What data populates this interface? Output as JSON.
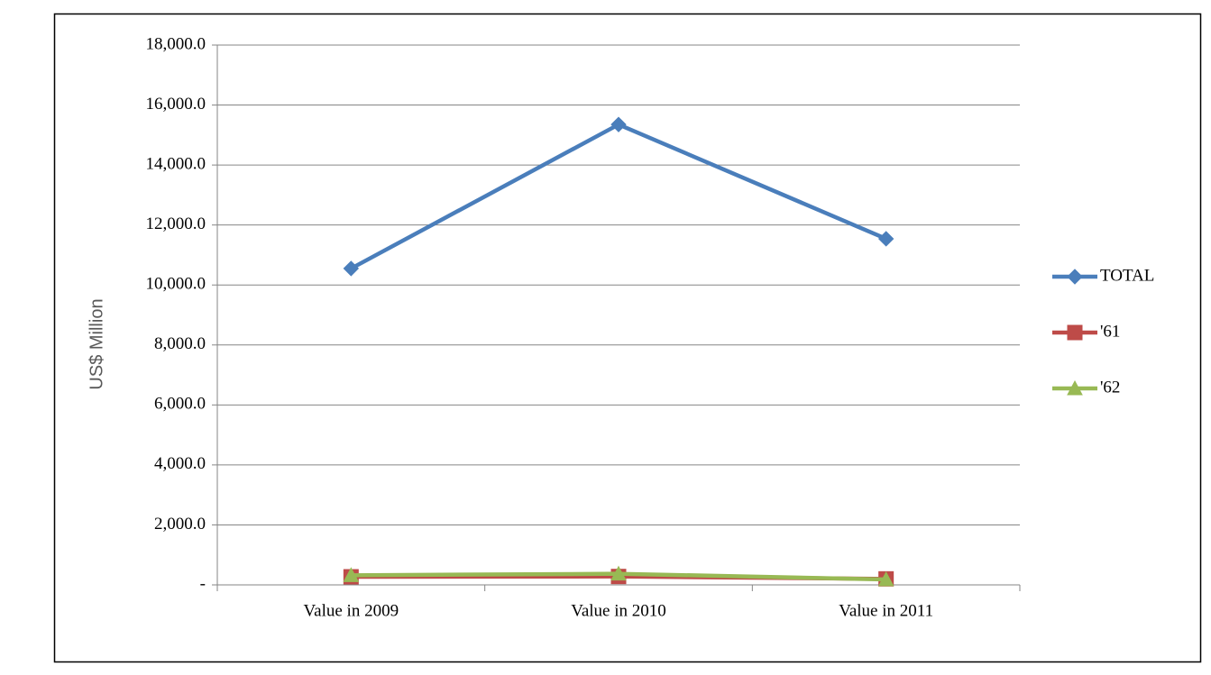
{
  "chart_data": {
    "type": "line",
    "y_label": "US$ Million",
    "categories": [
      "Value in 2009",
      "Value in 2010",
      "Value in 2011"
    ],
    "series": [
      {
        "name": "TOTAL",
        "color": "#4a7ebb",
        "marker": "diamond",
        "values": [
          10550,
          15350,
          11540
        ]
      },
      {
        "name": "'61",
        "color": "#be4b48",
        "marker": "square",
        "values": [
          270,
          280,
          200
        ]
      },
      {
        "name": "'62",
        "color": "#98b954",
        "marker": "triangle",
        "values": [
          320,
          370,
          180
        ]
      }
    ],
    "ylim": [
      0,
      18000
    ],
    "yticks": [
      {
        "value": 0,
        "label": "-"
      },
      {
        "value": 2000,
        "label": "2,000.0"
      },
      {
        "value": 4000,
        "label": "4,000.0"
      },
      {
        "value": 6000,
        "label": "6,000.0"
      },
      {
        "value": 8000,
        "label": "8,000.0"
      },
      {
        "value": 10000,
        "label": "10,000.0"
      },
      {
        "value": 12000,
        "label": "12,000.0"
      },
      {
        "value": 14000,
        "label": "14,000.0"
      },
      {
        "value": 16000,
        "label": "16,000.0"
      },
      {
        "value": 18000,
        "label": "18,000.0"
      }
    ],
    "grid": true,
    "legend": "right"
  }
}
